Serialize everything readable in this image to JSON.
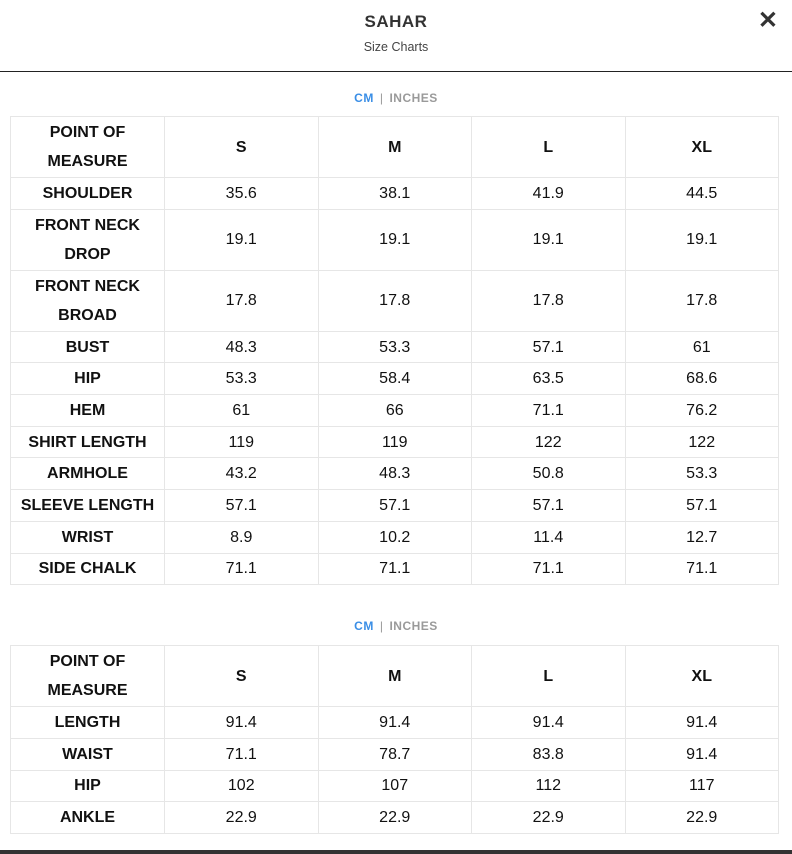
{
  "header": {
    "title": "SAHAR",
    "subtitle": "Size Charts",
    "close_icon": "close-icon"
  },
  "accent_color": "#3a8ee6",
  "tables": [
    {
      "units": {
        "active": "CM",
        "separator": "|",
        "inactive": "INCHES"
      },
      "columns": [
        "POINT OF MEASURE",
        "S",
        "M",
        "L",
        "XL"
      ],
      "rows": [
        [
          "SHOULDER",
          "35.6",
          "38.1",
          "41.9",
          "44.5"
        ],
        [
          "FRONT NECK DROP",
          "19.1",
          "19.1",
          "19.1",
          "19.1"
        ],
        [
          "FRONT NECK BROAD",
          "17.8",
          "17.8",
          "17.8",
          "17.8"
        ],
        [
          "BUST",
          "48.3",
          "53.3",
          "57.1",
          "61"
        ],
        [
          "HIP",
          "53.3",
          "58.4",
          "63.5",
          "68.6"
        ],
        [
          "HEM",
          "61",
          "66",
          "71.1",
          "76.2"
        ],
        [
          "SHIRT LENGTH",
          "119",
          "119",
          "122",
          "122"
        ],
        [
          "ARMHOLE",
          "43.2",
          "48.3",
          "50.8",
          "53.3"
        ],
        [
          "SLEEVE LENGTH",
          "57.1",
          "57.1",
          "57.1",
          "57.1"
        ],
        [
          "WRIST",
          "8.9",
          "10.2",
          "11.4",
          "12.7"
        ],
        [
          "SIDE CHALK",
          "71.1",
          "71.1",
          "71.1",
          "71.1"
        ]
      ]
    },
    {
      "units": {
        "active": "CM",
        "separator": "|",
        "inactive": "INCHES"
      },
      "columns": [
        "POINT OF MEASURE",
        "S",
        "M",
        "L",
        "XL"
      ],
      "rows": [
        [
          "LENGTH",
          "91.4",
          "91.4",
          "91.4",
          "91.4"
        ],
        [
          "WAIST",
          "71.1",
          "78.7",
          "83.8",
          "91.4"
        ],
        [
          "HIP",
          "102",
          "107",
          "112",
          "117"
        ],
        [
          "ANKLE",
          "22.9",
          "22.9",
          "22.9",
          "22.9"
        ]
      ]
    }
  ]
}
